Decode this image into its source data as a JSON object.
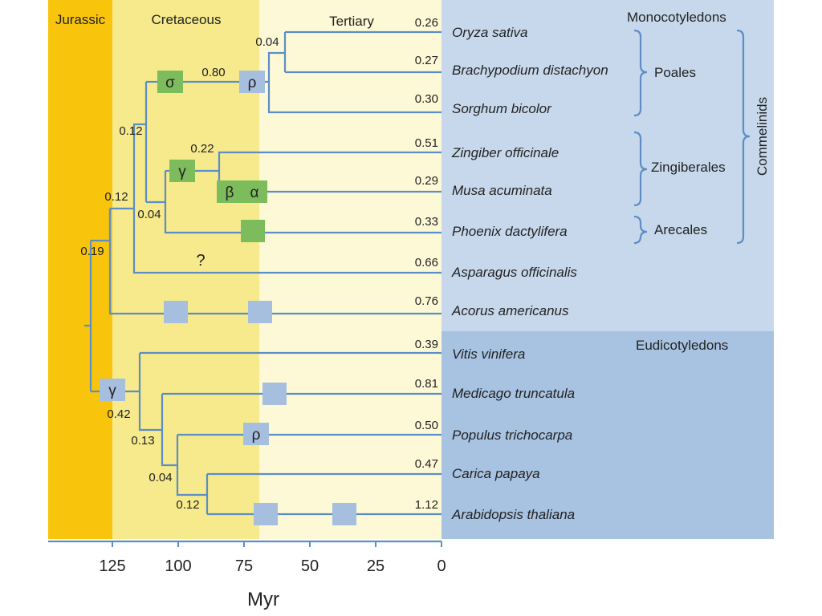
{
  "colors": {
    "jurassic": "#f8c40c",
    "cretaceous": "#f6ea8c",
    "tertiary": "#fdf9d6",
    "monocot_panel": "#c7d8ec",
    "eudicot_panel": "#a8c2e1",
    "branch": "#5b8ec7",
    "wgd_blue": "#a6bfdf",
    "wgd_green": "#7cbc5c",
    "text": "#222222"
  },
  "eras": [
    {
      "key": "jurassic",
      "label": "Jurassic",
      "start_myr": 148,
      "end_myr": 125
    },
    {
      "key": "cretaceous",
      "label": "Cretaceous",
      "start_myr": 125,
      "end_myr": 69
    },
    {
      "key": "tertiary",
      "label": "Tertiary",
      "start_myr": 69,
      "end_myr": 0
    }
  ],
  "axis": {
    "label": "Myr",
    "ticks": [
      "125",
      "100",
      "75",
      "50",
      "25",
      "0"
    ],
    "tick_values": [
      125,
      100,
      75,
      50,
      25,
      0
    ]
  },
  "groups": {
    "monocots": "Monocotyledons",
    "eudicots": "Eudicotyledons",
    "poales": "Poales",
    "zingiberales": "Zingiberales",
    "arecales": "Arecales",
    "commelinids": "Commelinids"
  },
  "species": [
    {
      "name": "Oryza sativa",
      "branch_value": "0.26"
    },
    {
      "name": "Brachypodium distachyon",
      "branch_value": "0.27"
    },
    {
      "name": "Sorghum bicolor",
      "branch_value": "0.30"
    },
    {
      "name": "Zingiber officinale",
      "branch_value": "0.51"
    },
    {
      "name": "Musa acuminata",
      "branch_value": "0.29"
    },
    {
      "name": "Phoenix dactylifera",
      "branch_value": "0.33"
    },
    {
      "name": "Asparagus officinalis",
      "branch_value": "0.66"
    },
    {
      "name": "Acorus americanus",
      "branch_value": "0.76"
    },
    {
      "name": "Vitis vinifera",
      "branch_value": "0.39"
    },
    {
      "name": "Medicago truncatula",
      "branch_value": "0.81"
    },
    {
      "name": "Populus trichocarpa",
      "branch_value": "0.50"
    },
    {
      "name": "Carica papaya",
      "branch_value": "0.47"
    },
    {
      "name": "Arabidopsis thaliana",
      "branch_value": "1.12"
    }
  ],
  "internal_values": {
    "grass_pair": "0.04",
    "poales_stem": "0.80",
    "commelinid_node": "0.12",
    "zingiberales_node": "0.22",
    "arecales_node": "0.04",
    "core_monocot_node": "0.12",
    "root_branch": "0.19",
    "eudicot_stem": "0.42",
    "eudicot_crown": "0.13",
    "rosid_node": "0.04",
    "brassicales_node": "0.12"
  },
  "events": {
    "sigma": "σ",
    "rho_monocot": "ρ",
    "gamma_monocot": "γ",
    "beta": "β",
    "alpha": "α",
    "rho_eudicot": "ρ",
    "gamma_eudicot": "γ",
    "unknown": "?"
  }
}
